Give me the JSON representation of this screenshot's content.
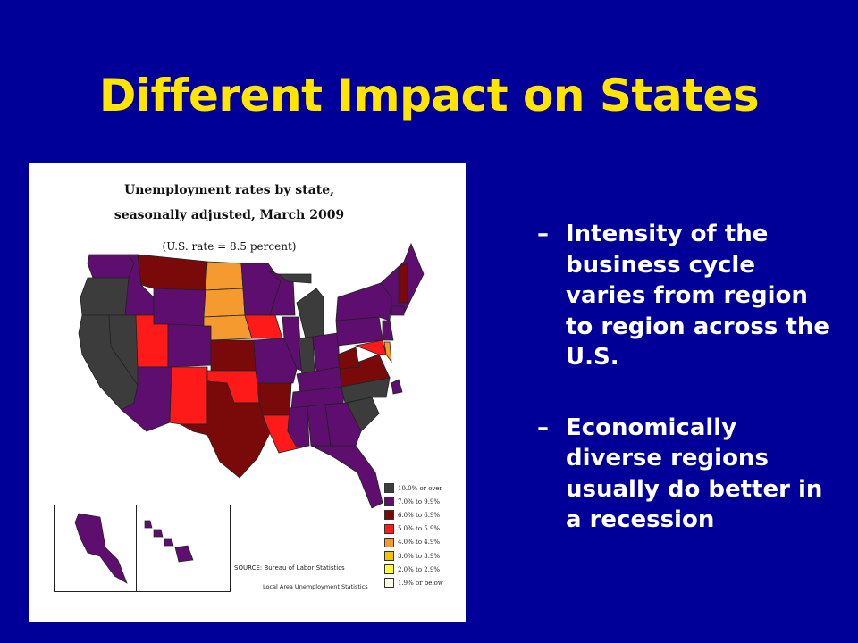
{
  "slide": {
    "title": "Different Impact on States",
    "background_color": "#000099",
    "title_color": "#FFE500"
  },
  "map": {
    "title_line1": "Unemployment rates by state,",
    "title_line2": "seasonally adjusted, March 2009",
    "subtitle": "(U.S. rate = 8.5 percent)",
    "source_line1": "SOURCE:  Bureau of Labor Statistics",
    "source_line2": "Local Area Unemployment Statistics",
    "legend": [
      {
        "label": "10.0% or over",
        "color": "#3c3c3c"
      },
      {
        "label": "7.0% to 9.9%",
        "color": "#5e0e6e"
      },
      {
        "label": "6.0% to 6.9%",
        "color": "#7a0a0a"
      },
      {
        "label": "5.0% to 5.9%",
        "color": "#ff1a1a"
      },
      {
        "label": "4.0% to 4.9%",
        "color": "#f59a2e"
      },
      {
        "label": "3.0% to 3.9%",
        "color": "#f5c400"
      },
      {
        "label": "2.0% to 2.9%",
        "color": "#ffff33"
      },
      {
        "label": "1.9% or below",
        "color": "#ffffe8"
      }
    ]
  },
  "bullets": [
    {
      "dash": "–",
      "text": "Intensity of the business cycle varies from region to region across the U.S."
    },
    {
      "dash": "–",
      "text": "Economically diverse regions usually do better in a recession"
    }
  ]
}
